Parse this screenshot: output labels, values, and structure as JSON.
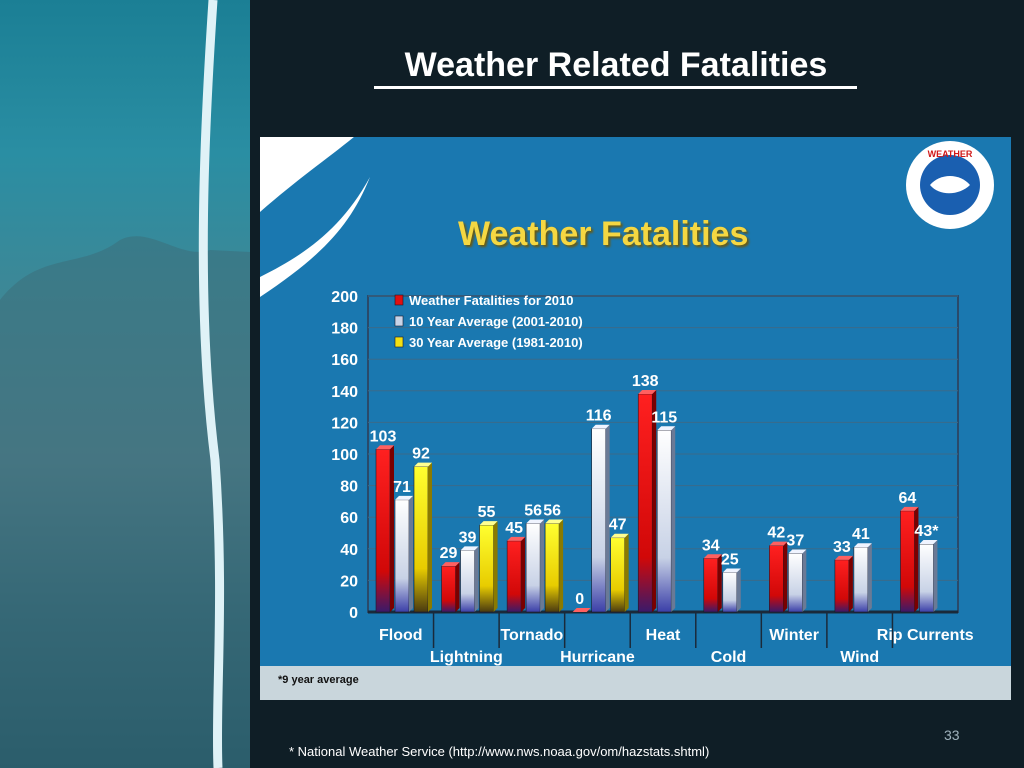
{
  "slide": {
    "title": "Weather Related Fatalities",
    "page_number": "33",
    "source_note": "* National Weather Service (http://www.nws.noaa.gov/om/hazstats.shtml)"
  },
  "chart_data": {
    "type": "bar",
    "title": "Weather Fatalities",
    "footnote": "*9 year average",
    "logo": "National Weather Service",
    "categories": [
      "Flood",
      "Lightning",
      "Tornado",
      "Hurricane",
      "Heat",
      "Cold",
      "Winter",
      "Wind",
      "Rip Currents"
    ],
    "series": [
      {
        "name": "Weather Fatalities for 2010",
        "color": "#e01010",
        "values": [
          103,
          29,
          45,
          0,
          138,
          34,
          42,
          33,
          64
        ]
      },
      {
        "name": "10 Year Average (2001-2010)",
        "color": "#c8d4e8",
        "values": [
          71,
          39,
          56,
          116,
          115,
          25,
          37,
          41,
          43
        ]
      },
      {
        "name": "30 Year Average (1981-2010)",
        "color": "#f3e012",
        "values": [
          92,
          55,
          56,
          47,
          null,
          null,
          null,
          null,
          null
        ]
      }
    ],
    "value_labels": [
      [
        "103",
        "71",
        "92"
      ],
      [
        "29",
        "39",
        "55"
      ],
      [
        "45",
        "56",
        "56"
      ],
      [
        "0",
        "116",
        "47"
      ],
      [
        "138",
        "115",
        ""
      ],
      [
        "34",
        "25",
        ""
      ],
      [
        "42",
        "37",
        ""
      ],
      [
        "33",
        "41",
        ""
      ],
      [
        "64",
        "43*",
        ""
      ]
    ],
    "yticks": [
      0,
      20,
      40,
      60,
      80,
      100,
      120,
      140,
      160,
      180,
      200
    ],
    "ylim": [
      0,
      200
    ],
    "grid": true,
    "legend_position": "top-left"
  }
}
